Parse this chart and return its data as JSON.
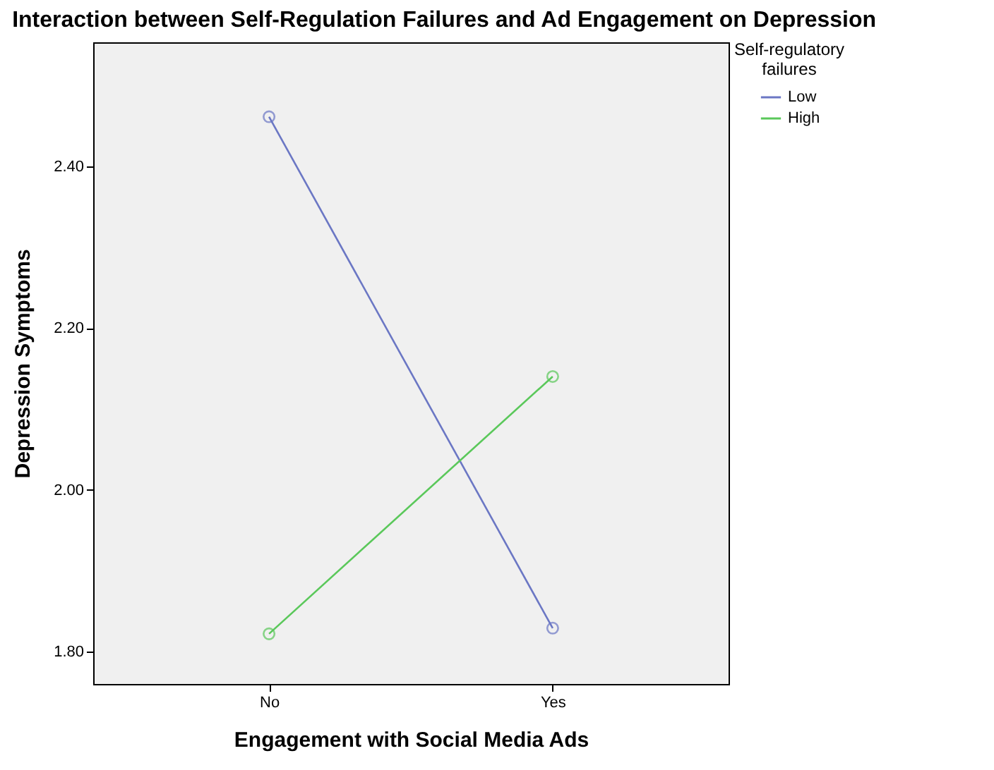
{
  "chart_data": {
    "type": "line",
    "title": "Interaction between Self-Regulation Failures and Ad Engagement on Depression",
    "xlabel": "Engagement with Social Media Ads",
    "ylabel": "Depression Symptoms",
    "legend_title": "Self-regulatory failures",
    "categories": [
      "No",
      "Yes"
    ],
    "series": [
      {
        "name": "Low",
        "color": "#6b77c4",
        "values": [
          2.461,
          1.829
        ]
      },
      {
        "name": "High",
        "color": "#5ac85a",
        "values": [
          1.822,
          2.14
        ]
      }
    ],
    "ylim": [
      1.76,
      2.553
    ],
    "yticks": [
      {
        "value": 1.8,
        "label": "1.80"
      },
      {
        "value": 2.0,
        "label": "2.00"
      },
      {
        "value": 2.2,
        "label": "2.20"
      },
      {
        "value": 2.4,
        "label": "2.40"
      }
    ],
    "grid": false,
    "legend": "top right",
    "marker": "circle",
    "line_style": "solid"
  }
}
